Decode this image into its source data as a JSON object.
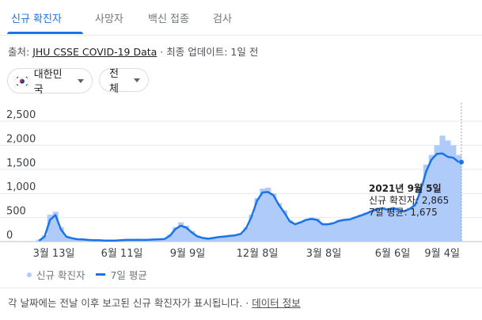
{
  "tabs": [
    {
      "label": "신규 확진자",
      "active": true
    },
    {
      "label": "사망자",
      "active": false
    },
    {
      "label": "백신 접종",
      "active": false
    },
    {
      "label": "검사",
      "active": false
    }
  ],
  "source": {
    "prefix": "출처: ",
    "link": "JHU CSSE COVID-19 Data",
    "separator": " · ",
    "updated": "최종 업데이트: 1일 전"
  },
  "filters": {
    "region": "대한민국",
    "range": "전체"
  },
  "tooltip": {
    "date": "2021년 9월 5일",
    "new_cases": "신규 확진자: 2,865",
    "avg": "7일 평균: 1,675"
  },
  "legend": {
    "bars": "신규 확진자",
    "line": "7일 평균"
  },
  "footnote": {
    "text": "각 날짜에는 전날 이후 보고된 신규 확진자가 표시됩니다.",
    "separator": " · ",
    "link": "데이터 정보"
  },
  "colors": {
    "accent": "#1a73e8",
    "bars": "#aecbfa"
  },
  "chart_data": {
    "type": "bar",
    "overlay": "line",
    "y_ticks": [
      "2,500",
      "2,000",
      "1,500",
      "1,000",
      "500",
      "0"
    ],
    "x_ticks": [
      "3월 13일",
      "6월 11일",
      "9월 9일",
      "12월 8일",
      "3월 8일",
      "6월 6일",
      "9월 4일"
    ],
    "ylim": [
      0,
      2600
    ],
    "series": [
      {
        "name": "신규 확진자",
        "values": [
          40,
          130,
          560,
          620,
          300,
          120,
          80,
          60,
          50,
          40,
          30,
          30,
          25,
          20,
          20,
          30,
          40,
          35,
          40,
          35,
          40,
          45,
          50,
          60,
          150,
          300,
          400,
          330,
          220,
          120,
          80,
          60,
          80,
          100,
          110,
          130,
          140,
          170,
          300,
          560,
          900,
          1100,
          1120,
          1000,
          800,
          650,
          450,
          380,
          420,
          470,
          500,
          480,
          380,
          370,
          400,
          450,
          470,
          480,
          520,
          560,
          600,
          650,
          700,
          720,
          680,
          720,
          680,
          640,
          700,
          800,
          1100,
          1600,
          1800,
          2000,
          2200,
          2100,
          2000,
          1800
        ]
      },
      {
        "name": "7일 평균",
        "values": [
          20,
          100,
          450,
          550,
          250,
          100,
          70,
          50,
          45,
          35,
          30,
          28,
          22,
          20,
          20,
          28,
          35,
          35,
          38,
          35,
          38,
          42,
          48,
          55,
          120,
          260,
          330,
          290,
          190,
          110,
          75,
          60,
          75,
          95,
          105,
          120,
          130,
          160,
          280,
          520,
          850,
          1020,
          1030,
          960,
          760,
          600,
          420,
          360,
          400,
          450,
          470,
          450,
          360,
          360,
          380,
          430,
          450,
          460,
          500,
          540,
          580,
          630,
          670,
          690,
          660,
          690,
          660,
          630,
          680,
          760,
          1050,
          1450,
          1700,
          1820,
          1830,
          1760,
          1740,
          1650
        ]
      }
    ]
  }
}
